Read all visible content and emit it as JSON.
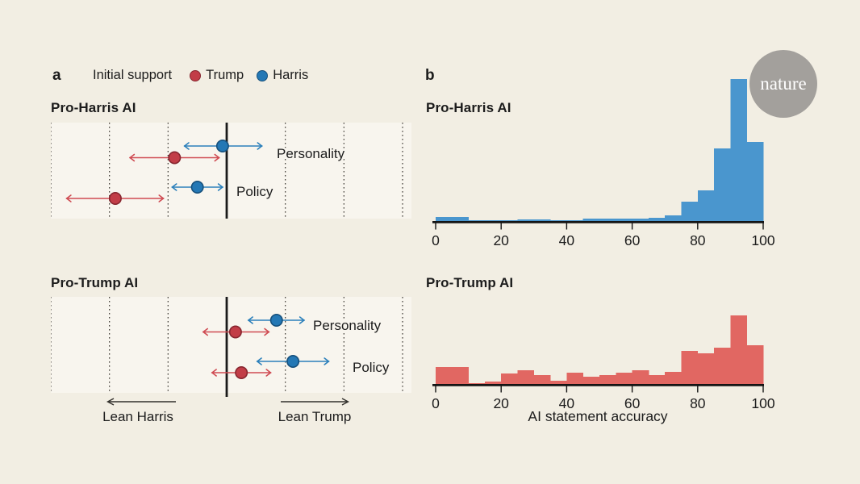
{
  "figure": {
    "background": "#f2eee3",
    "panel_background": "#f8f5ee",
    "text_color": "#1c1c1c",
    "axis_color": "#141414",
    "gridline_color": "#45413b"
  },
  "panel_a": {
    "label": "a",
    "legend": {
      "title": "Initial support",
      "items": [
        {
          "label": "Trump",
          "color": "#c23d47",
          "edge": "#87262f",
          "line": "#cf4b52"
        },
        {
          "label": "Harris",
          "color": "#2478b5",
          "edge": "#16507c",
          "line": "#2c80bb"
        }
      ]
    },
    "direction_arrows": {
      "left": "Lean Harris",
      "right": "Lean Trump"
    }
  },
  "panel_b": {
    "label": "b"
  },
  "logo": {
    "text": "nature",
    "background": "#a3a09c",
    "color": "#ffffff"
  },
  "chart_data": [
    {
      "id": "forest_pro_harris",
      "type": "scatter",
      "title": "Pro-Harris AI",
      "x_axis": {
        "min": -3,
        "max": 3,
        "gridlines": [
          -3,
          -2,
          -1,
          0,
          1,
          2,
          3
        ],
        "zero_line": 0
      },
      "rows": [
        {
          "label": "Personality",
          "points": [
            {
              "series": "Harris",
              "value": -0.07,
              "ci_low": -0.73,
              "ci_high": 0.61
            },
            {
              "series": "Trump",
              "value": -0.89,
              "ci_low": -1.66,
              "ci_high": -0.12
            }
          ]
        },
        {
          "label": "Policy",
          "points": [
            {
              "series": "Harris",
              "value": -0.5,
              "ci_low": -0.94,
              "ci_high": -0.06
            },
            {
              "series": "Trump",
              "value": -1.9,
              "ci_low": -2.74,
              "ci_high": -1.07
            }
          ]
        }
      ]
    },
    {
      "id": "forest_pro_trump",
      "type": "scatter",
      "title": "Pro-Trump AI",
      "x_axis": {
        "min": -3,
        "max": 3,
        "gridlines": [
          -3,
          -2,
          -1,
          0,
          1,
          2,
          3
        ],
        "zero_line": 0
      },
      "rows": [
        {
          "label": "Personality",
          "points": [
            {
              "series": "Harris",
              "value": 0.85,
              "ci_low": 0.36,
              "ci_high": 1.33
            },
            {
              "series": "Trump",
              "value": 0.15,
              "ci_low": -0.41,
              "ci_high": 0.73
            }
          ]
        },
        {
          "label": "Policy",
          "points": [
            {
              "series": "Harris",
              "value": 1.13,
              "ci_low": 0.51,
              "ci_high": 1.75
            },
            {
              "series": "Trump",
              "value": 0.25,
              "ci_low": -0.26,
              "ci_high": 0.76
            }
          ]
        }
      ]
    },
    {
      "id": "hist_pro_harris",
      "type": "bar",
      "title": "Pro-Harris AI",
      "color": "#4a96ce",
      "bin_start": 0,
      "bin_width": 5,
      "values": [
        5,
        5,
        1,
        1,
        1,
        2,
        2,
        1,
        1,
        3,
        3,
        3,
        3,
        4,
        7,
        24,
        38,
        90,
        176,
        98
      ],
      "value_units": "relative frequency",
      "xticks": [
        0,
        20,
        40,
        60,
        80,
        100
      ],
      "xlim": [
        0,
        100
      ],
      "xlabel": ""
    },
    {
      "id": "hist_pro_trump",
      "type": "bar",
      "title": "Pro-Trump AI",
      "color": "#e16762",
      "bin_start": 0,
      "bin_width": 5,
      "values": [
        21,
        21,
        1,
        3,
        13,
        17,
        11,
        4,
        14,
        9,
        11,
        14,
        17,
        11,
        15,
        41,
        38,
        45,
        85,
        48
      ],
      "value_units": "relative frequency",
      "xticks": [
        0,
        20,
        40,
        60,
        80,
        100
      ],
      "xlim": [
        0,
        100
      ],
      "xlabel": "AI statement accuracy"
    }
  ]
}
